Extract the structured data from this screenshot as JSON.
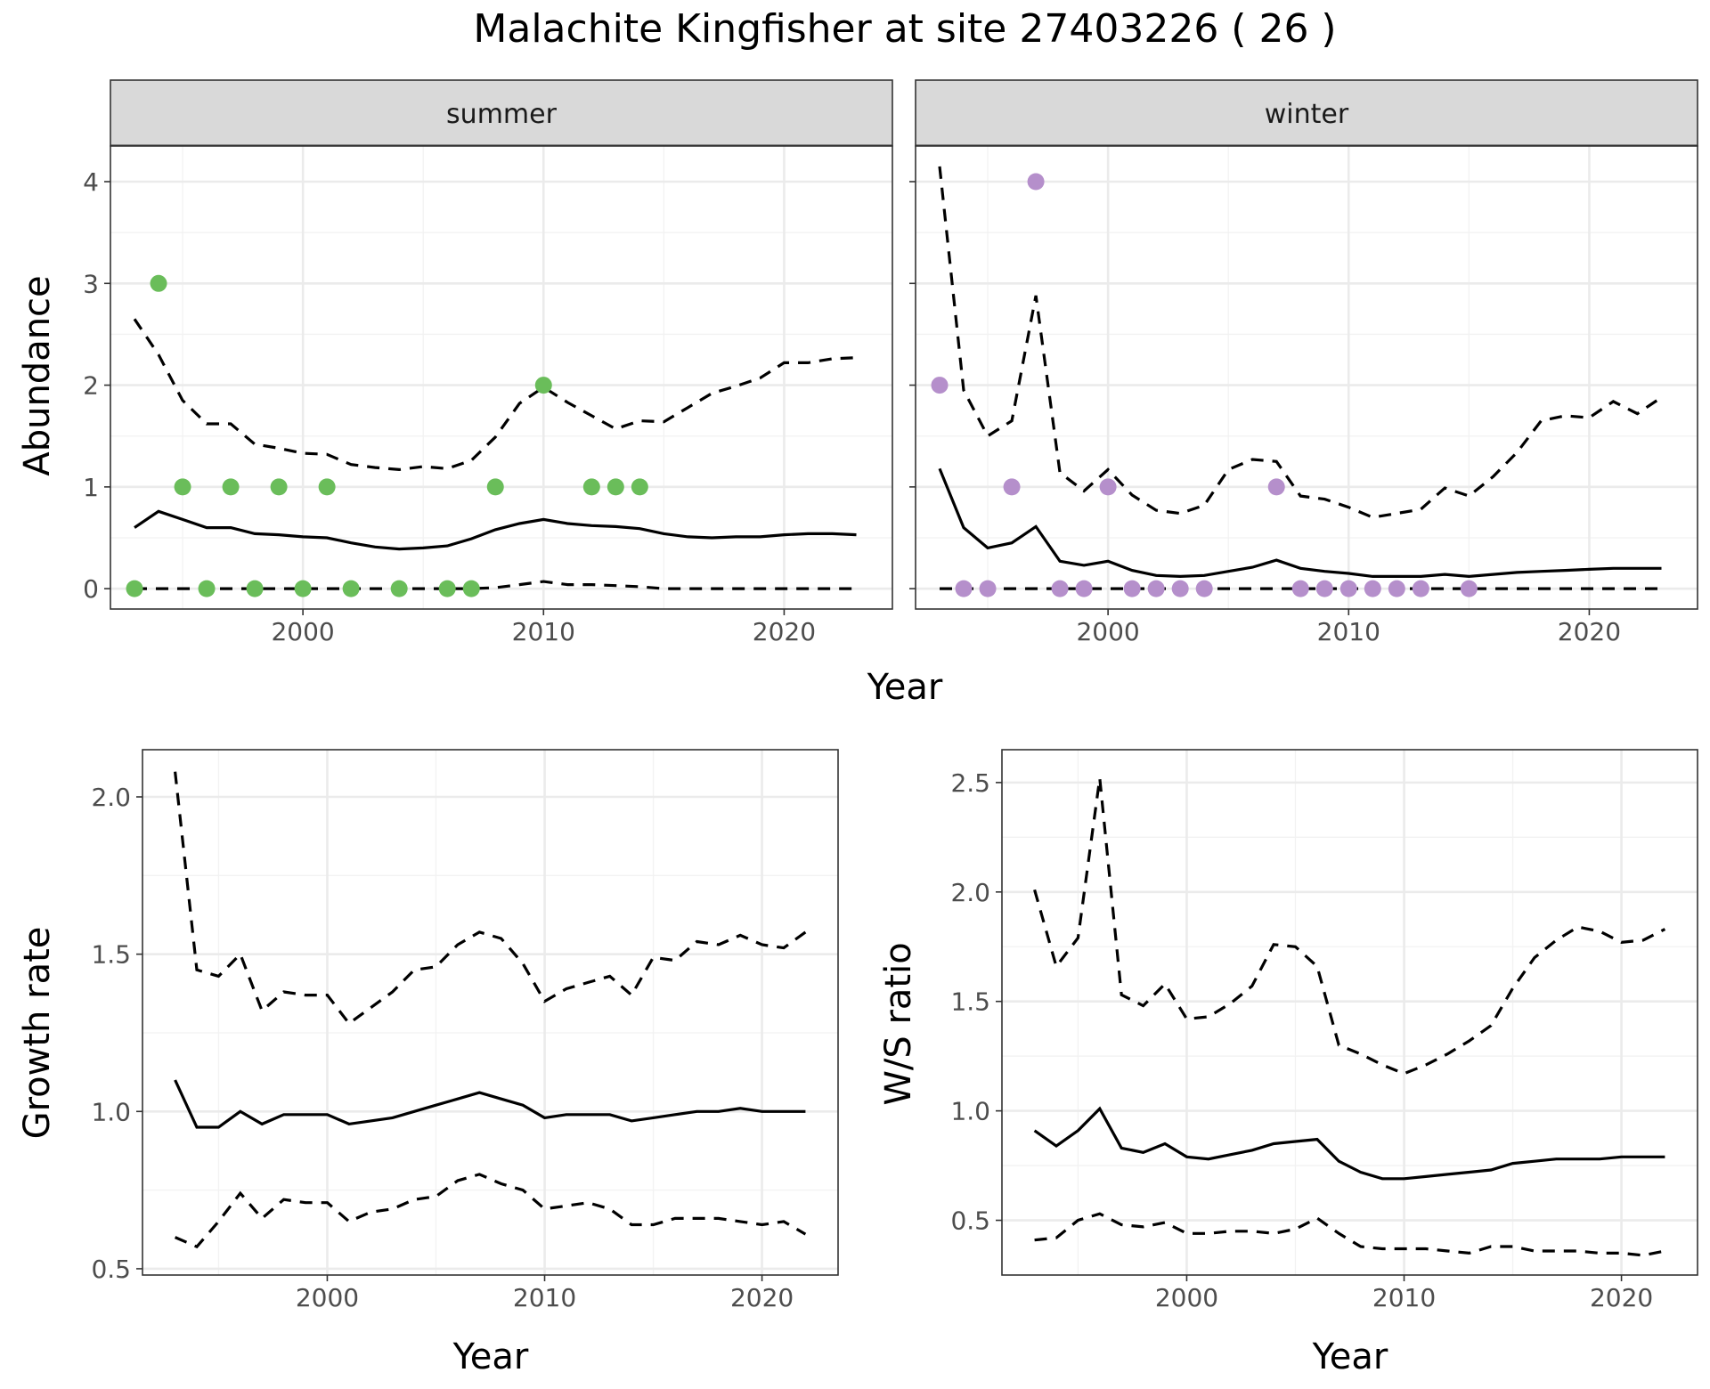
{
  "title": "Malachite Kingfisher at site 27403226 ( 26 )",
  "colors": {
    "summer_points": "#6abd5a",
    "winter_points": "#b58fcb",
    "lines": "#000000"
  },
  "chart_data": [
    {
      "type": "line",
      "panel": "summer",
      "strip_label": "summer",
      "xlabel": "Year",
      "ylabel": "Abundance",
      "xlim": [
        1992,
        2024.5
      ],
      "ylim": [
        -0.2,
        4.35
      ],
      "x_ticks": [
        2000,
        2010,
        2020
      ],
      "x_tick_labels": [
        "2000",
        "2010",
        "2020"
      ],
      "y_ticks": [
        0,
        1,
        2,
        3,
        4
      ],
      "y_tick_labels": [
        "0",
        "1",
        "2",
        "3",
        "4"
      ],
      "grid": true,
      "x": [
        1993,
        1994,
        1995,
        1996,
        1997,
        1998,
        1999,
        2000,
        2001,
        2002,
        2003,
        2004,
        2005,
        2006,
        2007,
        2008,
        2009,
        2010,
        2011,
        2012,
        2013,
        2014,
        2015,
        2016,
        2017,
        2018,
        2019,
        2020,
        2021,
        2022,
        2023
      ],
      "series": [
        {
          "role": "mean",
          "values": [
            0.6,
            0.76,
            0.68,
            0.6,
            0.6,
            0.54,
            0.53,
            0.51,
            0.5,
            0.45,
            0.41,
            0.39,
            0.4,
            0.42,
            0.49,
            0.58,
            0.64,
            0.68,
            0.64,
            0.62,
            0.61,
            0.59,
            0.54,
            0.51,
            0.5,
            0.51,
            0.51,
            0.53,
            0.54,
            0.54,
            0.53
          ]
        },
        {
          "role": "upper",
          "values": [
            2.65,
            2.3,
            1.85,
            1.62,
            1.62,
            1.42,
            1.38,
            1.33,
            1.32,
            1.22,
            1.19,
            1.17,
            1.2,
            1.18,
            1.26,
            1.49,
            1.82,
            1.98,
            1.83,
            1.7,
            1.57,
            1.65,
            1.64,
            1.78,
            1.92,
            1.99,
            2.07,
            2.22,
            2.22,
            2.26,
            2.27
          ]
        },
        {
          "role": "lower",
          "values": [
            0,
            0,
            0,
            0,
            0,
            0,
            0,
            0,
            0,
            0,
            0,
            0,
            0,
            0,
            0,
            0.01,
            0.04,
            0.07,
            0.04,
            0.04,
            0.03,
            0.02,
            0,
            0,
            0,
            0,
            0,
            0,
            0,
            0,
            0
          ]
        }
      ],
      "points": {
        "x": [
          1993,
          1994,
          1995,
          1996,
          1997,
          1998,
          1999,
          2000,
          2001,
          2002,
          2004,
          2006,
          2007,
          2008,
          2010,
          2012,
          2013,
          2014
        ],
        "y": [
          0,
          3,
          1,
          0,
          1,
          0,
          1,
          0,
          1,
          0,
          0,
          0,
          0,
          1,
          2,
          1,
          1,
          1
        ]
      }
    },
    {
      "type": "line",
      "panel": "winter",
      "strip_label": "winter",
      "xlabel": "Year",
      "ylabel": "Abundance",
      "xlim": [
        1992,
        2024.5
      ],
      "ylim": [
        -0.2,
        4.35
      ],
      "x_ticks": [
        2000,
        2010,
        2020
      ],
      "x_tick_labels": [
        "2000",
        "2010",
        "2020"
      ],
      "y_ticks": [
        0,
        1,
        2,
        3,
        4
      ],
      "grid": true,
      "x": [
        1993,
        1994,
        1995,
        1996,
        1997,
        1998,
        1999,
        2000,
        2001,
        2002,
        2003,
        2004,
        2005,
        2006,
        2007,
        2008,
        2009,
        2010,
        2011,
        2012,
        2013,
        2014,
        2015,
        2016,
        2017,
        2018,
        2019,
        2020,
        2021,
        2022,
        2023
      ],
      "series": [
        {
          "role": "mean",
          "values": [
            1.18,
            0.6,
            0.4,
            0.45,
            0.61,
            0.27,
            0.23,
            0.27,
            0.18,
            0.13,
            0.12,
            0.13,
            0.17,
            0.21,
            0.28,
            0.2,
            0.17,
            0.15,
            0.12,
            0.12,
            0.12,
            0.14,
            0.12,
            0.14,
            0.16,
            0.17,
            0.18,
            0.19,
            0.2,
            0.2,
            0.2
          ]
        },
        {
          "role": "upper",
          "values": [
            4.15,
            1.95,
            1.5,
            1.65,
            2.88,
            1.14,
            0.96,
            1.17,
            0.92,
            0.77,
            0.74,
            0.82,
            1.17,
            1.27,
            1.25,
            0.91,
            0.88,
            0.8,
            0.7,
            0.74,
            0.78,
            0.99,
            0.91,
            1.1,
            1.34,
            1.65,
            1.7,
            1.68,
            1.84,
            1.72,
            1.88
          ]
        },
        {
          "role": "lower",
          "values": [
            0,
            0,
            0,
            0,
            0,
            0,
            0,
            0,
            0,
            0,
            0,
            0,
            0,
            0,
            0,
            0,
            0,
            0,
            0,
            0,
            0,
            0,
            0,
            0,
            0,
            0,
            0,
            0,
            0,
            0,
            0
          ]
        }
      ],
      "points": {
        "x": [
          1993,
          1994,
          1995,
          1996,
          1997,
          1998,
          1999,
          2000,
          2001,
          2002,
          2003,
          2004,
          2007,
          2008,
          2009,
          2010,
          2011,
          2012,
          2013,
          2015
        ],
        "y": [
          2,
          0,
          0,
          1,
          4,
          0,
          0,
          1,
          0,
          0,
          0,
          0,
          1,
          0,
          0,
          0,
          0,
          0,
          0,
          0
        ]
      }
    },
    {
      "type": "line",
      "panel": "growth",
      "xlabel": "Year",
      "ylabel": "Growth rate",
      "xlim": [
        1991.5,
        2023.5
      ],
      "ylim": [
        0.48,
        2.15
      ],
      "x_ticks": [
        2000,
        2010,
        2020
      ],
      "x_tick_labels": [
        "2000",
        "2010",
        "2020"
      ],
      "y_ticks": [
        0.5,
        1.0,
        1.5,
        2.0
      ],
      "y_tick_labels": [
        "0.5",
        "1.0",
        "1.5",
        "2.0"
      ],
      "grid": true,
      "x": [
        1993,
        1994,
        1995,
        1996,
        1997,
        1998,
        1999,
        2000,
        2001,
        2002,
        2003,
        2004,
        2005,
        2006,
        2007,
        2008,
        2009,
        2010,
        2011,
        2012,
        2013,
        2014,
        2015,
        2016,
        2017,
        2018,
        2019,
        2020,
        2021,
        2022
      ],
      "series": [
        {
          "role": "mean",
          "values": [
            1.1,
            0.95,
            0.95,
            1.0,
            0.96,
            0.99,
            0.99,
            0.99,
            0.96,
            0.97,
            0.98,
            1.0,
            1.02,
            1.04,
            1.06,
            1.04,
            1.02,
            0.98,
            0.99,
            0.99,
            0.99,
            0.97,
            0.98,
            0.99,
            1.0,
            1.0,
            1.01,
            1.0,
            1.0,
            1.0
          ]
        },
        {
          "role": "upper",
          "values": [
            2.08,
            1.45,
            1.43,
            1.5,
            1.32,
            1.38,
            1.37,
            1.37,
            1.28,
            1.33,
            1.38,
            1.45,
            1.46,
            1.53,
            1.57,
            1.55,
            1.47,
            1.35,
            1.39,
            1.41,
            1.43,
            1.37,
            1.49,
            1.48,
            1.54,
            1.53,
            1.56,
            1.53,
            1.52,
            1.57
          ]
        },
        {
          "role": "lower",
          "values": [
            0.6,
            0.57,
            0.65,
            0.74,
            0.66,
            0.72,
            0.71,
            0.71,
            0.65,
            0.68,
            0.69,
            0.72,
            0.73,
            0.78,
            0.8,
            0.77,
            0.75,
            0.69,
            0.7,
            0.71,
            0.69,
            0.64,
            0.64,
            0.66,
            0.66,
            0.66,
            0.65,
            0.64,
            0.65,
            0.61
          ]
        }
      ]
    },
    {
      "type": "line",
      "panel": "ratio",
      "xlabel": "Year",
      "ylabel": "W/S ratio",
      "xlim": [
        1991.5,
        2023.5
      ],
      "ylim": [
        0.25,
        2.65
      ],
      "x_ticks": [
        2000,
        2010,
        2020
      ],
      "x_tick_labels": [
        "2000",
        "2010",
        "2020"
      ],
      "y_ticks": [
        0.5,
        1.0,
        1.5,
        2.0,
        2.5
      ],
      "y_tick_labels": [
        "0.5",
        "1.0",
        "1.5",
        "2.0",
        "2.5"
      ],
      "grid": true,
      "x": [
        1993,
        1994,
        1995,
        1996,
        1997,
        1998,
        1999,
        2000,
        2001,
        2002,
        2003,
        2004,
        2005,
        2006,
        2007,
        2008,
        2009,
        2010,
        2011,
        2012,
        2013,
        2014,
        2015,
        2016,
        2017,
        2018,
        2019,
        2020,
        2021,
        2022
      ],
      "series": [
        {
          "role": "mean",
          "values": [
            0.91,
            0.84,
            0.91,
            1.01,
            0.83,
            0.81,
            0.85,
            0.79,
            0.78,
            0.8,
            0.82,
            0.85,
            0.86,
            0.87,
            0.77,
            0.72,
            0.69,
            0.69,
            0.7,
            0.71,
            0.72,
            0.73,
            0.76,
            0.77,
            0.78,
            0.78,
            0.78,
            0.79,
            0.79,
            0.79
          ]
        },
        {
          "role": "upper",
          "values": [
            2.01,
            1.66,
            1.79,
            2.52,
            1.53,
            1.48,
            1.58,
            1.42,
            1.43,
            1.49,
            1.57,
            1.76,
            1.75,
            1.66,
            1.3,
            1.26,
            1.21,
            1.17,
            1.21,
            1.26,
            1.32,
            1.39,
            1.56,
            1.7,
            1.78,
            1.84,
            1.82,
            1.77,
            1.78,
            1.83
          ]
        },
        {
          "role": "lower",
          "values": [
            0.41,
            0.42,
            0.5,
            0.53,
            0.48,
            0.47,
            0.49,
            0.44,
            0.44,
            0.45,
            0.45,
            0.44,
            0.46,
            0.51,
            0.44,
            0.38,
            0.37,
            0.37,
            0.37,
            0.36,
            0.35,
            0.38,
            0.38,
            0.36,
            0.36,
            0.36,
            0.35,
            0.35,
            0.34,
            0.36
          ]
        }
      ]
    }
  ]
}
